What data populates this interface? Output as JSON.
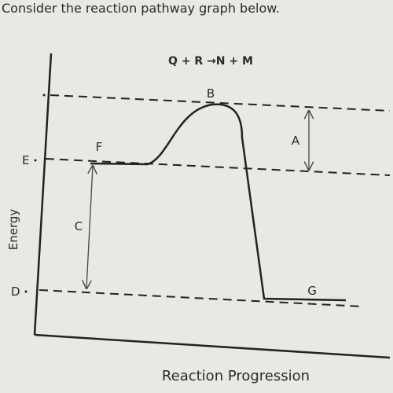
{
  "question": "Consider the reaction pathway graph below.",
  "diagram": {
    "title": "Q + R →N + M",
    "labels": {
      "a": "A",
      "b": "B",
      "c": "C",
      "d": "D",
      "e": "E",
      "f": "F",
      "g": "G"
    },
    "y_axis_label": "Energy",
    "x_axis_label": "Reaction Progression"
  }
}
